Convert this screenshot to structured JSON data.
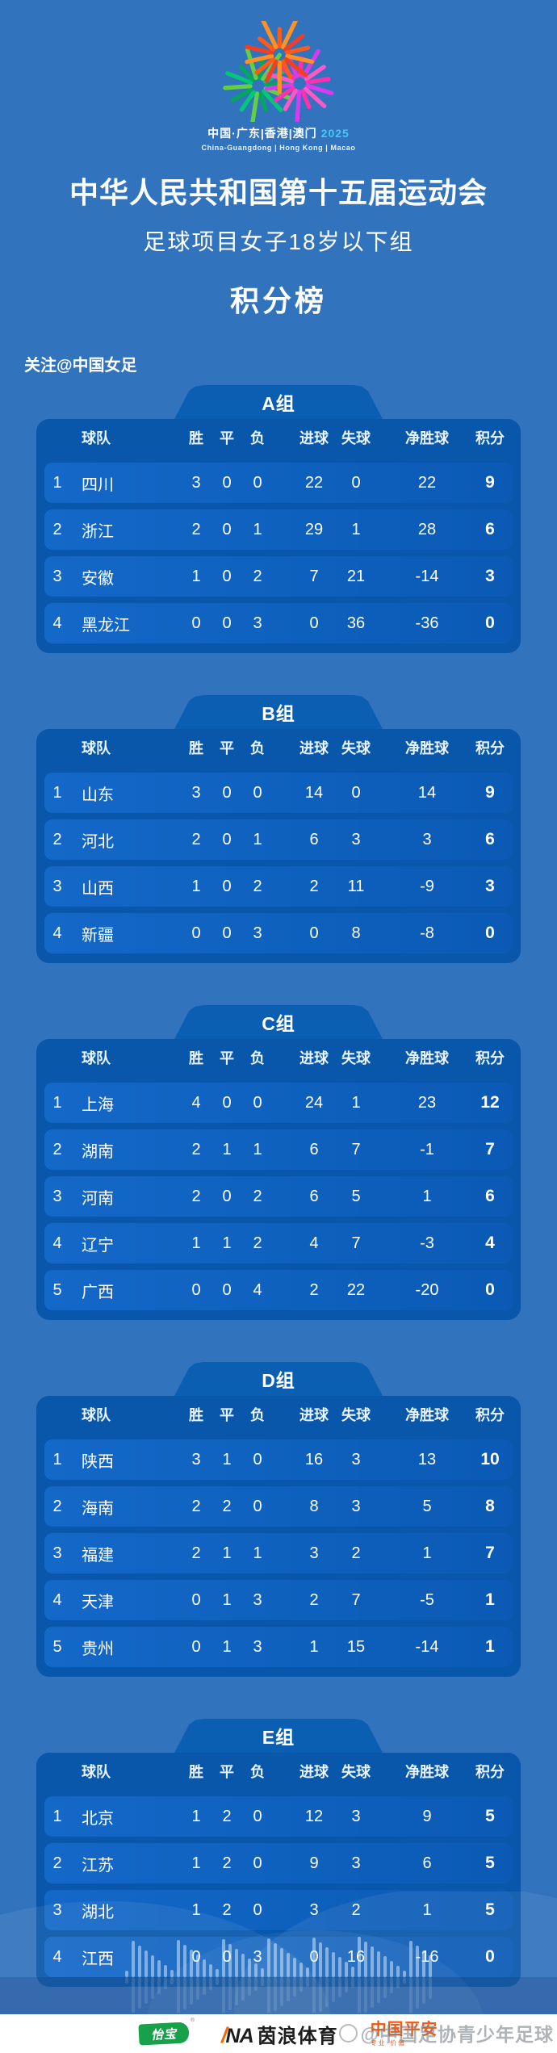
{
  "colors": {
    "background": "#3273bd",
    "panel": "#0857aa",
    "tab": "#0a5fb3",
    "row_gradient": [
      "#1468c8",
      "#0a5ab5"
    ],
    "sponsor_green": "#17a14b",
    "sponsor_orange": "#f4570f",
    "ina_orange": "#ff6300"
  },
  "header": {
    "logo": {
      "line1_cn": "中国·广东|香港|澳门",
      "year": "2025",
      "line2_en": "China-Guangdong | Hong Kong | Macao"
    },
    "title": "中华人民共和国第十五届运动会",
    "subtitle": "足球项目女子18岁以下组",
    "section_title": "积分榜",
    "follow": "关注@中国女足"
  },
  "table_headers": {
    "team": "球队",
    "win": "胜",
    "draw": "平",
    "loss": "负",
    "gf": "进球",
    "ga": "失球",
    "gd": "净胜球",
    "pts": "积分"
  },
  "groups": [
    {
      "name": "A组",
      "rows": [
        {
          "rank": 1,
          "team": "四川",
          "w": 3,
          "d": 0,
          "l": 0,
          "gf": 22,
          "ga": 0,
          "gd": 22,
          "pts": 9
        },
        {
          "rank": 2,
          "team": "浙江",
          "w": 2,
          "d": 0,
          "l": 1,
          "gf": 29,
          "ga": 1,
          "gd": 28,
          "pts": 6
        },
        {
          "rank": 3,
          "team": "安徽",
          "w": 1,
          "d": 0,
          "l": 2,
          "gf": 7,
          "ga": 21,
          "gd": -14,
          "pts": 3
        },
        {
          "rank": 4,
          "team": "黑龙江",
          "w": 0,
          "d": 0,
          "l": 3,
          "gf": 0,
          "ga": 36,
          "gd": -36,
          "pts": 0
        }
      ]
    },
    {
      "name": "B组",
      "rows": [
        {
          "rank": 1,
          "team": "山东",
          "w": 3,
          "d": 0,
          "l": 0,
          "gf": 14,
          "ga": 0,
          "gd": 14,
          "pts": 9
        },
        {
          "rank": 2,
          "team": "河北",
          "w": 2,
          "d": 0,
          "l": 1,
          "gf": 6,
          "ga": 3,
          "gd": 3,
          "pts": 6
        },
        {
          "rank": 3,
          "team": "山西",
          "w": 1,
          "d": 0,
          "l": 2,
          "gf": 2,
          "ga": 11,
          "gd": -9,
          "pts": 3
        },
        {
          "rank": 4,
          "team": "新疆",
          "w": 0,
          "d": 0,
          "l": 3,
          "gf": 0,
          "ga": 8,
          "gd": -8,
          "pts": 0
        }
      ]
    },
    {
      "name": "C组",
      "rows": [
        {
          "rank": 1,
          "team": "上海",
          "w": 4,
          "d": 0,
          "l": 0,
          "gf": 24,
          "ga": 1,
          "gd": 23,
          "pts": 12
        },
        {
          "rank": 2,
          "team": "湖南",
          "w": 2,
          "d": 1,
          "l": 1,
          "gf": 6,
          "ga": 7,
          "gd": -1,
          "pts": 7
        },
        {
          "rank": 3,
          "team": "河南",
          "w": 2,
          "d": 0,
          "l": 2,
          "gf": 6,
          "ga": 5,
          "gd": 1,
          "pts": 6
        },
        {
          "rank": 4,
          "team": "辽宁",
          "w": 1,
          "d": 1,
          "l": 2,
          "gf": 4,
          "ga": 7,
          "gd": -3,
          "pts": 4
        },
        {
          "rank": 5,
          "team": "广西",
          "w": 0,
          "d": 0,
          "l": 4,
          "gf": 2,
          "ga": 22,
          "gd": -20,
          "pts": 0
        }
      ]
    },
    {
      "name": "D组",
      "rows": [
        {
          "rank": 1,
          "team": "陕西",
          "w": 3,
          "d": 1,
          "l": 0,
          "gf": 16,
          "ga": 3,
          "gd": 13,
          "pts": 10
        },
        {
          "rank": 2,
          "team": "海南",
          "w": 2,
          "d": 2,
          "l": 0,
          "gf": 8,
          "ga": 3,
          "gd": 5,
          "pts": 8
        },
        {
          "rank": 3,
          "team": "福建",
          "w": 2,
          "d": 1,
          "l": 1,
          "gf": 3,
          "ga": 2,
          "gd": 1,
          "pts": 7
        },
        {
          "rank": 4,
          "team": "天津",
          "w": 0,
          "d": 1,
          "l": 3,
          "gf": 2,
          "ga": 7,
          "gd": -5,
          "pts": 1
        },
        {
          "rank": 5,
          "team": "贵州",
          "w": 0,
          "d": 1,
          "l": 3,
          "gf": 1,
          "ga": 15,
          "gd": -14,
          "pts": 1
        }
      ]
    },
    {
      "name": "E组",
      "rows": [
        {
          "rank": 1,
          "team": "北京",
          "w": 1,
          "d": 2,
          "l": 0,
          "gf": 12,
          "ga": 3,
          "gd": 9,
          "pts": 5
        },
        {
          "rank": 2,
          "team": "江苏",
          "w": 1,
          "d": 2,
          "l": 0,
          "gf": 9,
          "ga": 3,
          "gd": 6,
          "pts": 5
        },
        {
          "rank": 3,
          "team": "湖北",
          "w": 1,
          "d": 2,
          "l": 0,
          "gf": 3,
          "ga": 2,
          "gd": 1,
          "pts": 5
        },
        {
          "rank": 4,
          "team": "江西",
          "w": 0,
          "d": 0,
          "l": 3,
          "gf": 0,
          "ga": 16,
          "gd": -16,
          "pts": 0
        }
      ]
    }
  ],
  "footer": {
    "sponsor1": "怡宝",
    "sponsor1_reg": "®",
    "sponsor2_slash": "/",
    "sponsor2_na": "NA",
    "sponsor2_name": "茵浪体育",
    "sponsor3": "中国平安",
    "sponsor3_sub": "专业·价值",
    "watermark": "@中国足协青少年足球"
  }
}
